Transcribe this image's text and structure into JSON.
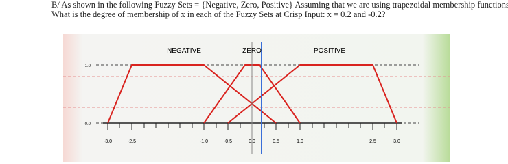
{
  "question": "B/ As shown in the following Fuzzy Sets = {Negative, Zero, Positive} Assuming that we are using trapezoidal membership functions, What is the degree of membership of x in each of the Fuzzy Sets at Crisp Input: x = 0.2 and -0.2?",
  "diagram": {
    "set_labels": [
      "NEGATIVE",
      "ZERO",
      "POSITIVE"
    ],
    "y_labels": [
      "1.0",
      "0.0"
    ],
    "x_labels": [
      "-3.0",
      "-2.5",
      "-1.0",
      "-0.5",
      "0.0",
      "0.5",
      "1.0",
      "2.5",
      "3.0"
    ]
  }
}
